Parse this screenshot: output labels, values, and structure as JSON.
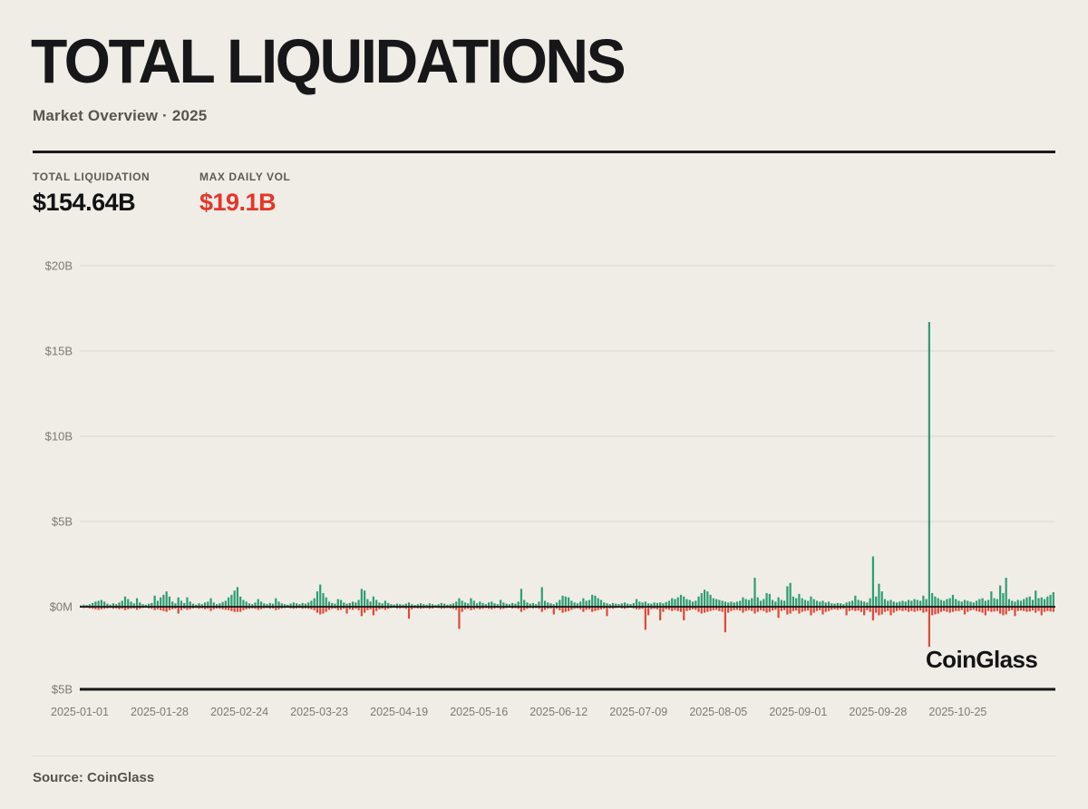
{
  "page": {
    "background": "#EFEDE6"
  },
  "header": {
    "title": "TOTAL LIQUIDATIONS",
    "subtitle": "Market Overview · 2025"
  },
  "stats": {
    "total_liquidation": {
      "label": "TOTAL LIQUIDATION",
      "value": "$154.64B"
    },
    "max_daily_vol": {
      "label": "MAX DAILY VOL",
      "value": "$19.1B",
      "value_color": "#E5352B"
    }
  },
  "watermark": "CoinGlass",
  "footer": {
    "source": "Source: CoinGlass"
  },
  "chart_data": {
    "type": "bar",
    "description": "Daily crypto liquidations in 2025; green bars extend up from zero (long liquidations), red bars extend down (short liquidations). Values in $ billions.",
    "colors": {
      "green": "#2E9C74",
      "red": "#DC4A3C",
      "gridline": "#DBD8D1",
      "axis_text": "#7C7A73",
      "axis_line": "#161616"
    },
    "y_axis": {
      "unit": "USD billions",
      "range": [
        -5,
        20
      ],
      "ticks": [
        {
          "label": "$20B",
          "value": 20
        },
        {
          "label": "$15B",
          "value": 15
        },
        {
          "label": "$10B",
          "value": 10
        },
        {
          "label": "$5B",
          "value": 5
        },
        {
          "label": "$0M",
          "value": 0
        },
        {
          "label": "$5B",
          "value": -5
        }
      ]
    },
    "x_axis": {
      "start_date": "2025-01-01",
      "frequency": "daily",
      "tick_interval_days": 27,
      "tick_labels": [
        "2025-01-01",
        "2025-01-28",
        "2025-02-24",
        "2025-03-23",
        "2025-04-19",
        "2025-05-16",
        "2025-06-12",
        "2025-07-09",
        "2025-08-05",
        "2025-09-01",
        "2025-09-28",
        "2025-10-25"
      ]
    },
    "series": [
      {
        "name": "long_liquidations_up",
        "color": "#2E9C74",
        "values": [
          0.08,
          0.12,
          0.1,
          0.15,
          0.22,
          0.3,
          0.35,
          0.4,
          0.3,
          0.18,
          0.12,
          0.2,
          0.15,
          0.25,
          0.35,
          0.6,
          0.45,
          0.3,
          0.2,
          0.5,
          0.25,
          0.15,
          0.12,
          0.18,
          0.22,
          0.65,
          0.35,
          0.55,
          0.7,
          0.9,
          0.6,
          0.3,
          0.2,
          0.55,
          0.35,
          0.22,
          0.55,
          0.3,
          0.18,
          0.12,
          0.2,
          0.15,
          0.25,
          0.3,
          0.5,
          0.25,
          0.15,
          0.2,
          0.28,
          0.35,
          0.55,
          0.7,
          0.95,
          1.15,
          0.6,
          0.4,
          0.3,
          0.2,
          0.15,
          0.25,
          0.45,
          0.3,
          0.2,
          0.15,
          0.22,
          0.18,
          0.5,
          0.3,
          0.2,
          0.15,
          0.12,
          0.18,
          0.25,
          0.2,
          0.15,
          0.22,
          0.18,
          0.25,
          0.35,
          0.5,
          0.9,
          1.3,
          0.8,
          0.55,
          0.3,
          0.22,
          0.18,
          0.45,
          0.4,
          0.25,
          0.18,
          0.22,
          0.3,
          0.25,
          0.4,
          1.05,
          0.95,
          0.45,
          0.3,
          0.6,
          0.4,
          0.25,
          0.2,
          0.35,
          0.22,
          0.15,
          0.12,
          0.18,
          0.15,
          0.12,
          0.18,
          0.25,
          0.15,
          0.1,
          0.15,
          0.2,
          0.15,
          0.12,
          0.2,
          0.15,
          0.1,
          0.15,
          0.22,
          0.18,
          0.12,
          0.15,
          0.2,
          0.3,
          0.5,
          0.35,
          0.25,
          0.2,
          0.5,
          0.35,
          0.2,
          0.3,
          0.22,
          0.15,
          0.25,
          0.3,
          0.2,
          0.15,
          0.4,
          0.25,
          0.18,
          0.15,
          0.22,
          0.18,
          0.3,
          1.05,
          0.4,
          0.25,
          0.18,
          0.22,
          0.15,
          0.3,
          1.15,
          0.35,
          0.25,
          0.2,
          0.15,
          0.25,
          0.4,
          0.65,
          0.6,
          0.55,
          0.35,
          0.25,
          0.2,
          0.3,
          0.5,
          0.35,
          0.4,
          0.7,
          0.65,
          0.5,
          0.4,
          0.25,
          0.2,
          0.15,
          0.22,
          0.18,
          0.15,
          0.2,
          0.25,
          0.18,
          0.15,
          0.22,
          0.45,
          0.3,
          0.25,
          0.3,
          0.2,
          0.18,
          0.25,
          0.22,
          0.25,
          0.2,
          0.28,
          0.35,
          0.5,
          0.45,
          0.55,
          0.7,
          0.6,
          0.45,
          0.4,
          0.3,
          0.35,
          0.6,
          0.8,
          1.0,
          0.9,
          0.7,
          0.5,
          0.45,
          0.4,
          0.35,
          0.3,
          0.25,
          0.3,
          0.25,
          0.3,
          0.35,
          0.55,
          0.45,
          0.4,
          0.5,
          1.7,
          0.55,
          0.35,
          0.45,
          0.8,
          0.75,
          0.4,
          0.3,
          0.55,
          0.4,
          0.35,
          1.2,
          1.4,
          0.6,
          0.5,
          0.75,
          0.5,
          0.4,
          0.35,
          0.6,
          0.45,
          0.35,
          0.3,
          0.35,
          0.25,
          0.3,
          0.2,
          0.18,
          0.22,
          0.2,
          0.15,
          0.25,
          0.3,
          0.35,
          0.65,
          0.4,
          0.35,
          0.3,
          0.25,
          0.5,
          2.95,
          0.6,
          1.35,
          0.9,
          0.45,
          0.35,
          0.4,
          0.3,
          0.25,
          0.3,
          0.35,
          0.3,
          0.4,
          0.35,
          0.45,
          0.4,
          0.35,
          0.65,
          0.45,
          16.7,
          0.8,
          0.6,
          0.5,
          0.4,
          0.35,
          0.45,
          0.5,
          0.7,
          0.45,
          0.35,
          0.3,
          0.4,
          0.35,
          0.3,
          0.25,
          0.35,
          0.45,
          0.5,
          0.35,
          0.4,
          0.9,
          0.5,
          0.45,
          1.25,
          0.8,
          1.7,
          0.45,
          0.35,
          0.3,
          0.4,
          0.35,
          0.45,
          0.55,
          0.6,
          0.4,
          0.95,
          0.5,
          0.55,
          0.45,
          0.6,
          0.7,
          0.85
        ]
      },
      {
        "name": "short_liquidations_down",
        "color": "#DC4A3C",
        "direction": "down",
        "values": [
          0.05,
          0.08,
          0.06,
          0.1,
          0.12,
          0.15,
          0.18,
          0.15,
          0.12,
          0.1,
          0.08,
          0.12,
          0.1,
          0.15,
          0.12,
          0.2,
          0.15,
          0.12,
          0.1,
          0.18,
          0.12,
          0.08,
          0.06,
          0.1,
          0.12,
          0.2,
          0.15,
          0.2,
          0.25,
          0.3,
          0.2,
          0.15,
          0.12,
          0.4,
          0.2,
          0.12,
          0.18,
          0.15,
          0.1,
          0.08,
          0.12,
          0.1,
          0.15,
          0.12,
          0.25,
          0.15,
          0.1,
          0.12,
          0.15,
          0.18,
          0.2,
          0.25,
          0.3,
          0.3,
          0.3,
          0.2,
          0.15,
          0.12,
          0.1,
          0.12,
          0.18,
          0.15,
          0.1,
          0.08,
          0.12,
          0.1,
          0.2,
          0.15,
          0.1,
          0.08,
          0.06,
          0.1,
          0.12,
          0.1,
          0.08,
          0.12,
          0.1,
          0.12,
          0.15,
          0.2,
          0.35,
          0.45,
          0.4,
          0.3,
          0.18,
          0.12,
          0.1,
          0.2,
          0.18,
          0.12,
          0.4,
          0.15,
          0.18,
          0.12,
          0.2,
          0.55,
          0.35,
          0.2,
          0.15,
          0.5,
          0.25,
          0.15,
          0.12,
          0.18,
          0.12,
          0.08,
          0.06,
          0.1,
          0.1,
          0.08,
          0.12,
          0.7,
          0.15,
          0.08,
          0.1,
          0.12,
          0.1,
          0.08,
          0.12,
          0.1,
          0.06,
          0.08,
          0.12,
          0.1,
          0.08,
          0.1,
          0.12,
          0.18,
          1.3,
          0.3,
          0.15,
          0.12,
          0.2,
          0.15,
          0.1,
          0.15,
          0.12,
          0.08,
          0.12,
          0.15,
          0.1,
          0.08,
          0.15,
          0.12,
          0.08,
          0.06,
          0.1,
          0.08,
          0.12,
          0.3,
          0.2,
          0.12,
          0.08,
          0.1,
          0.08,
          0.12,
          0.3,
          0.18,
          0.12,
          0.1,
          0.45,
          0.12,
          0.2,
          0.35,
          0.3,
          0.25,
          0.18,
          0.12,
          0.1,
          0.15,
          0.3,
          0.18,
          0.15,
          0.3,
          0.25,
          0.2,
          0.15,
          0.12,
          0.55,
          0.1,
          0.12,
          0.08,
          0.06,
          0.1,
          0.12,
          0.08,
          0.06,
          0.1,
          0.15,
          0.15,
          0.12,
          1.35,
          0.5,
          0.15,
          0.12,
          0.15,
          0.8,
          0.3,
          0.15,
          0.18,
          0.25,
          0.2,
          0.25,
          0.3,
          0.8,
          0.25,
          0.2,
          0.15,
          0.18,
          0.3,
          0.4,
          0.35,
          0.3,
          0.25,
          0.2,
          0.18,
          0.25,
          0.3,
          1.5,
          0.35,
          0.25,
          0.2,
          0.18,
          0.22,
          0.35,
          0.25,
          0.2,
          0.25,
          0.4,
          0.3,
          0.2,
          0.25,
          0.35,
          0.3,
          0.22,
          0.18,
          0.65,
          0.25,
          0.2,
          0.45,
          0.4,
          0.25,
          0.22,
          0.4,
          0.3,
          0.25,
          0.22,
          0.5,
          0.35,
          0.25,
          0.2,
          0.45,
          0.3,
          0.25,
          0.18,
          0.15,
          0.18,
          0.15,
          0.12,
          0.5,
          0.25,
          0.2,
          0.25,
          0.22,
          0.3,
          0.5,
          0.2,
          0.3,
          0.8,
          0.35,
          0.5,
          0.45,
          0.3,
          0.25,
          0.5,
          0.35,
          0.25,
          0.2,
          0.25,
          0.22,
          0.3,
          0.25,
          0.3,
          0.25,
          0.22,
          0.35,
          0.3,
          2.35,
          0.5,
          0.45,
          0.4,
          0.3,
          0.25,
          0.3,
          0.35,
          0.3,
          0.25,
          0.25,
          0.2,
          0.45,
          0.3,
          0.22,
          0.18,
          0.25,
          0.3,
          0.35,
          0.5,
          0.25,
          0.3,
          0.28,
          0.25,
          0.4,
          0.5,
          0.45,
          0.25,
          0.2,
          0.55,
          0.25,
          0.22,
          0.25,
          0.3,
          0.28,
          0.22,
          0.35,
          0.25,
          0.5,
          0.3,
          0.25,
          0.28,
          0.3
        ]
      }
    ],
    "annotations": {
      "max_day_total_billions": 19.05,
      "max_day_long_billions": 16.7,
      "max_day_short_billions": 2.35
    }
  }
}
